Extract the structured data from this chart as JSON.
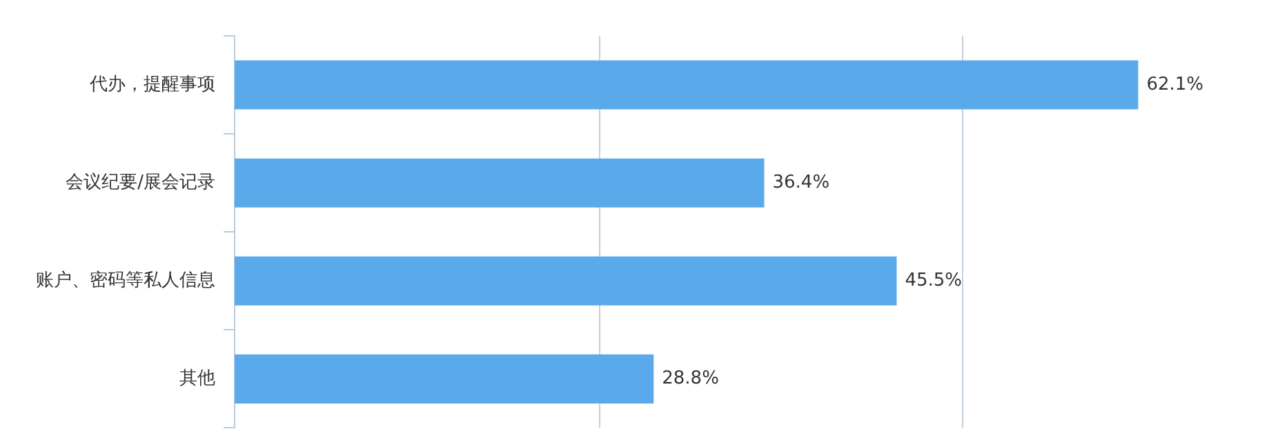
{
  "chart_data": {
    "type": "bar",
    "orientation": "horizontal",
    "categories": [
      "代办，提醒事项",
      "会议纪要/展会记录",
      "账户、密码等私人信息",
      "其他"
    ],
    "values": [
      62.1,
      36.4,
      45.5,
      28.8
    ],
    "value_labels": [
      "62.1%",
      "36.4%",
      "45.5%",
      "28.8%"
    ],
    "color": "#5aaaeb",
    "ref_lines": [
      {
        "axis": "x",
        "value": 25,
        "color": "#c4d0de"
      },
      {
        "axis": "x",
        "value": 50,
        "color": "#c4d0de"
      }
    ],
    "tick_labels": "y",
    "legend": false
  }
}
